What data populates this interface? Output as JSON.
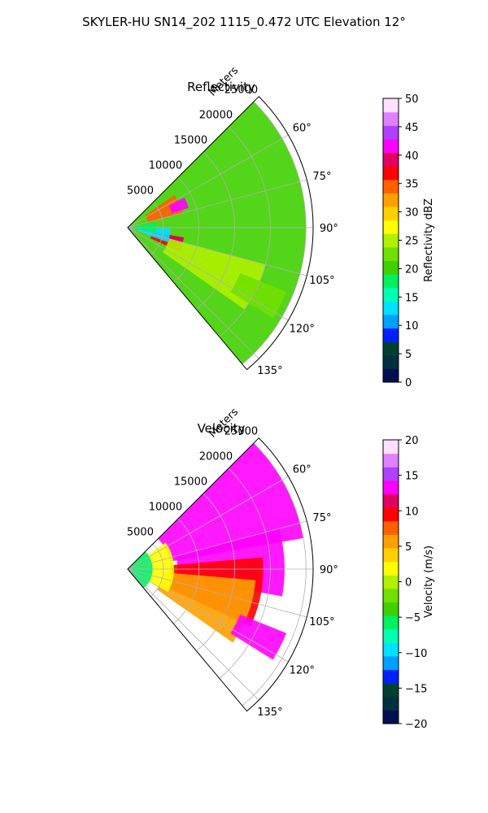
{
  "figure": {
    "suptitle": "SKYLER-HU  SN14_202  1115_0.472 UTC Elevation 12°"
  },
  "chart_data": [
    {
      "type": "heatmap",
      "projection": "polar-sector",
      "title": "Reflectivity",
      "range_label": "Meters",
      "range_ticks": [
        5000,
        10000,
        15000,
        20000,
        25000
      ],
      "range_tick_labels": [
        "5000",
        "10000",
        "15000",
        "20000",
        "25000"
      ],
      "rmax": 26000,
      "azimuth_range_deg": [
        45,
        140
      ],
      "azimuth_ticks": [
        60,
        75,
        90,
        105,
        120,
        135
      ],
      "azimuth_tick_labels": [
        "60°",
        "75°",
        "90°",
        "105°",
        "120°",
        "135°"
      ],
      "grid": true,
      "colorbar": {
        "label": "Reflectivity dBZ",
        "min": 0,
        "max": 50,
        "ticks": [
          0,
          5,
          10,
          15,
          20,
          25,
          30,
          35,
          40,
          45,
          50
        ],
        "tick_labels": [
          "0",
          "5",
          "10",
          "15",
          "20",
          "25",
          "30",
          "35",
          "40",
          "45",
          "50"
        ],
        "colors": [
          "#001050",
          "#003040",
          "#004030",
          "#0020ff",
          "#00a0ff",
          "#00e0ff",
          "#00ffb0",
          "#00f060",
          "#40d000",
          "#70e000",
          "#b0f000",
          "#ffff00",
          "#ffd000",
          "#ffa000",
          "#ff6000",
          "#ff0000",
          "#e00060",
          "#ff00ff",
          "#b040ff",
          "#e080ff",
          "#ffe0ff"
        ]
      },
      "regions": [
        {
          "az": [
            45,
            140
          ],
          "r": [
            0,
            25000
          ],
          "value": 21
        },
        {
          "az": [
            55,
            75
          ],
          "r": [
            3000,
            8000
          ],
          "value": 34
        },
        {
          "az": [
            62,
            72
          ],
          "r": [
            6500,
            9000
          ],
          "value": 42
        },
        {
          "az": [
            100,
            115
          ],
          "r": [
            3500,
            8000
          ],
          "value": 36
        },
        {
          "az": [
            100,
            108
          ],
          "r": [
            5000,
            8000
          ],
          "value": 40
        },
        {
          "az": [
            105,
            125
          ],
          "r": [
            6000,
            20000
          ],
          "value": 26
        },
        {
          "az": [
            90,
            110
          ],
          "r": [
            1500,
            6000
          ],
          "value": 14
        },
        {
          "az": [
            80,
            100
          ],
          "r": [
            0,
            4000
          ],
          "value": 18
        },
        {
          "az": [
            112,
            122
          ],
          "r": [
            17000,
            24000
          ],
          "value": 22
        }
      ]
    },
    {
      "type": "heatmap",
      "projection": "polar-sector",
      "title": "Velocity",
      "range_label": "Meters",
      "range_ticks": [
        5000,
        10000,
        15000,
        20000,
        25000
      ],
      "range_tick_labels": [
        "5000",
        "10000",
        "15000",
        "20000",
        "25000"
      ],
      "rmax": 26000,
      "azimuth_range_deg": [
        45,
        140
      ],
      "azimuth_ticks": [
        60,
        75,
        90,
        105,
        120,
        135
      ],
      "azimuth_tick_labels": [
        "60°",
        "75°",
        "90°",
        "105°",
        "120°",
        "135°"
      ],
      "grid": true,
      "colorbar": {
        "label": "Velocity (m/s)",
        "min": -20,
        "max": 20,
        "ticks": [
          -20,
          -15,
          -10,
          -5,
          0,
          5,
          10,
          15,
          20
        ],
        "tick_labels": [
          "−20",
          "−15",
          "−10",
          "−5",
          "0",
          "5",
          "10",
          "15",
          "20"
        ],
        "colors": [
          "#001050",
          "#003040",
          "#004030",
          "#0020ff",
          "#00a0ff",
          "#00e0ff",
          "#00ffb0",
          "#00f060",
          "#40d000",
          "#70e000",
          "#b0f000",
          "#ffff00",
          "#ffd000",
          "#ffa000",
          "#ff6000",
          "#ff0000",
          "#e00060",
          "#ff00ff",
          "#b040ff",
          "#e080ff",
          "#ffe0ff"
        ]
      },
      "regions": [
        {
          "az": [
            45,
            80
          ],
          "r": [
            6000,
            25000
          ],
          "value": 14
        },
        {
          "az": [
            75,
            100
          ],
          "r": [
            7000,
            22000
          ],
          "value": 14
        },
        {
          "az": [
            85,
            115
          ],
          "r": [
            6000,
            19000
          ],
          "value": 9
        },
        {
          "az": [
            95,
            125
          ],
          "r": [
            5000,
            18000
          ],
          "value": 5
        },
        {
          "az": [
            55,
            120
          ],
          "r": [
            3500,
            6500
          ],
          "value": 1
        },
        {
          "az": [
            45,
            140
          ],
          "r": [
            0,
            3500
          ],
          "value": -5
        },
        {
          "az": [
            112,
            122
          ],
          "r": [
            17000,
            24000
          ],
          "value": 13
        }
      ]
    }
  ]
}
